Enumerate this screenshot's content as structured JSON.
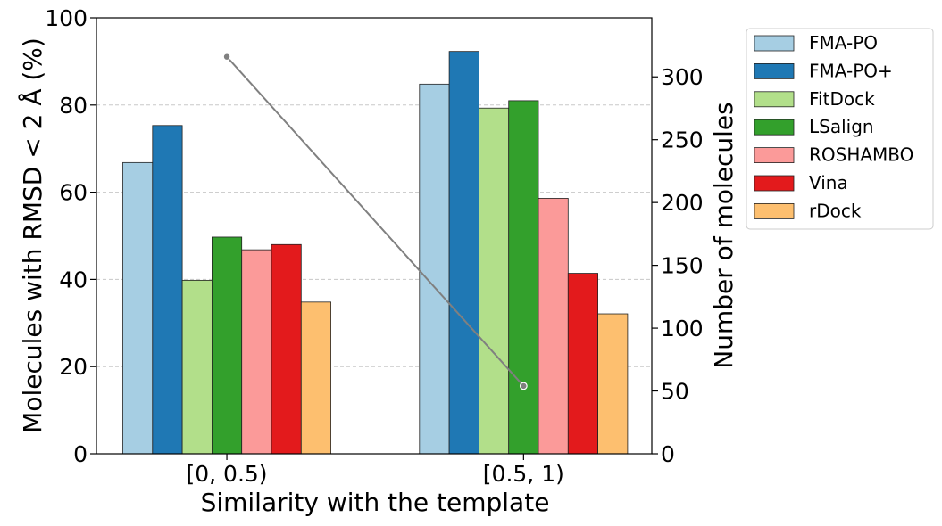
{
  "chart_data": {
    "type": "bar",
    "xlabel": "Similarity with the template",
    "ylabel": "Molecules with RMSD < 2 Å (%)",
    "y2label": "Number of molecules",
    "categories": [
      "[0, 0.5)",
      "[0.5, 1)"
    ],
    "ylim": [
      0,
      100
    ],
    "y2lim": [
      0,
      347
    ],
    "yticks": [
      "0",
      "20",
      "40",
      "60",
      "80",
      "100"
    ],
    "y2ticks": [
      "0",
      "50",
      "100",
      "150",
      "200",
      "250",
      "300"
    ],
    "grid": "horizontal dashed",
    "legend_position": "outside-right",
    "series": [
      {
        "name": "FMA-PO",
        "color": "#a6cee3",
        "values": [
          66.8,
          84.8
        ]
      },
      {
        "name": "FMA-PO+",
        "color": "#1f78b4",
        "values": [
          75.3,
          92.3
        ]
      },
      {
        "name": "FitDock",
        "color": "#b2df8a",
        "values": [
          39.8,
          79.3
        ]
      },
      {
        "name": "LSalign",
        "color": "#33a02c",
        "values": [
          49.7,
          81.0
        ]
      },
      {
        "name": "ROSHAMBO",
        "color": "#fb9a99",
        "values": [
          46.8,
          58.6
        ]
      },
      {
        "name": "Vina",
        "color": "#e31a1c",
        "values": [
          48.0,
          41.4
        ]
      },
      {
        "name": "rDock",
        "color": "#fdbf6f",
        "values": [
          34.8,
          32.1
        ]
      }
    ],
    "line_series": {
      "name": "Number of molecules",
      "axis": "right",
      "color": "#808080",
      "values": [
        316,
        54
      ]
    }
  }
}
